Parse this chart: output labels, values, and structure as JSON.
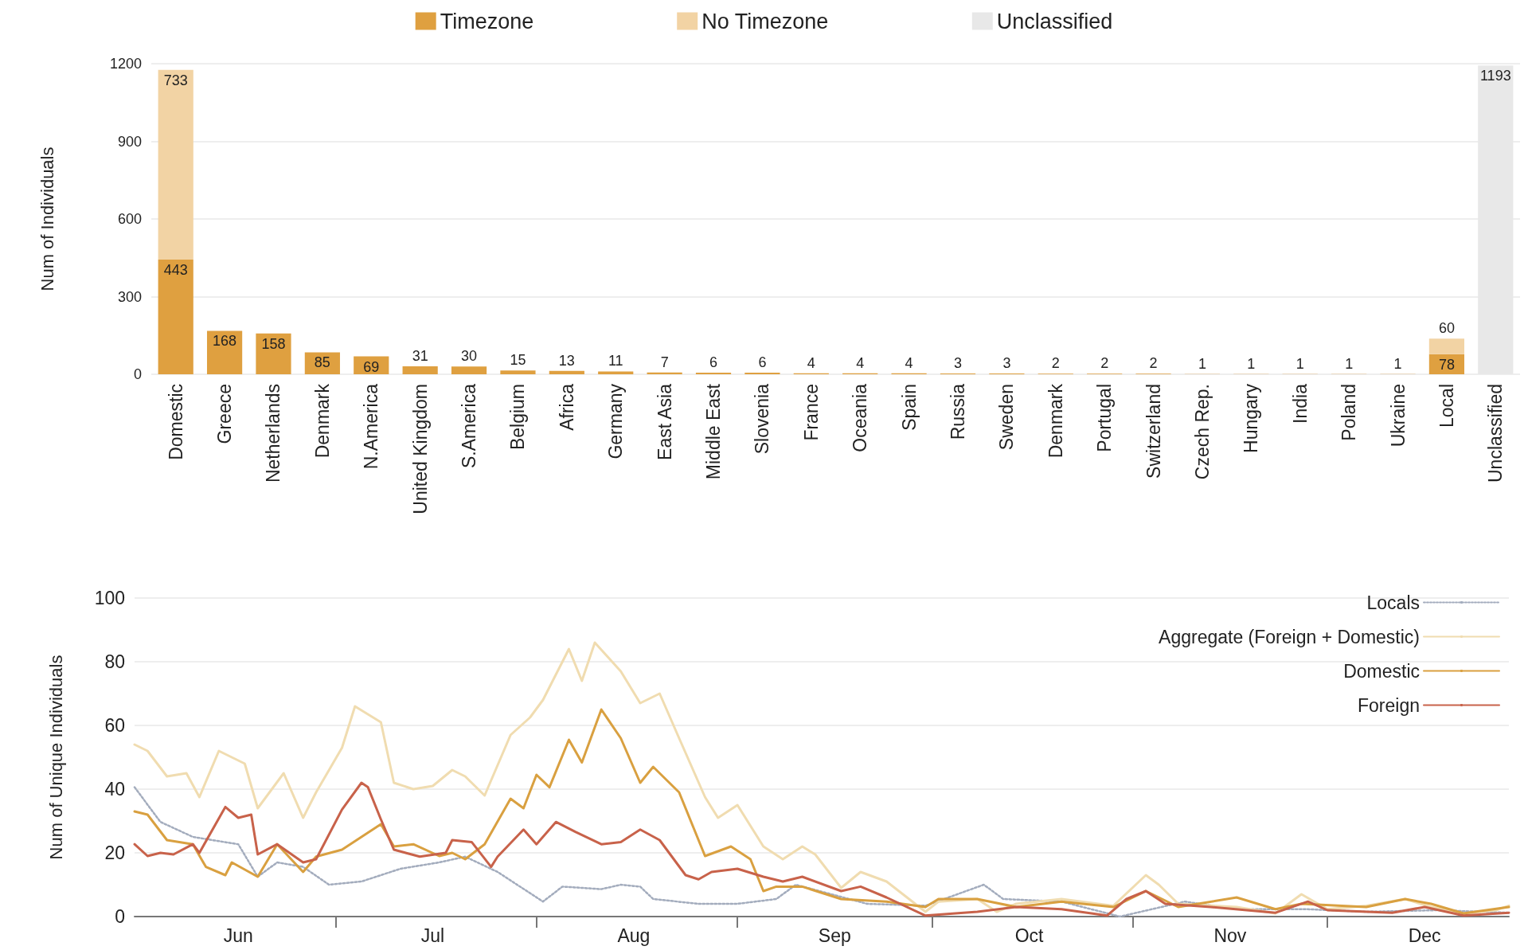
{
  "chart_data": [
    {
      "type": "bar",
      "stacked": true,
      "ylabel": "Num of Individuals",
      "legend": "top",
      "grid": "y",
      "data_labels": true,
      "categories": [
        "Domestic",
        "Greece",
        "Netherlands",
        "Denmark",
        "N.America",
        "United Kingdom",
        "S.America",
        "Belgium",
        "Africa",
        "Germany",
        "East Asia",
        "Middle East",
        "Slovenia",
        "France",
        "Oceania",
        "Spain",
        "Russia",
        "Sweden",
        "Denmark",
        "Portugal",
        "Switzerland",
        "Czech Rep.",
        "Hungary",
        "India",
        "Poland",
        "Ukraine",
        "Local",
        "Unclassified"
      ],
      "ylim": [
        0,
        1200
      ],
      "yticks": [
        0,
        300,
        600,
        900,
        1200
      ],
      "series": [
        {
          "name": "Timezone",
          "color": "#dfa040",
          "values": [
            443,
            168,
            158,
            85,
            69,
            31,
            30,
            15,
            13,
            11,
            7,
            6,
            6,
            4,
            4,
            4,
            3,
            3,
            2,
            2,
            2,
            1,
            1,
            1,
            1,
            1,
            78,
            null
          ]
        },
        {
          "name": "No Timezone",
          "color": "#f2d3a4",
          "values": [
            733,
            null,
            null,
            null,
            null,
            null,
            null,
            null,
            null,
            null,
            null,
            null,
            null,
            null,
            null,
            null,
            null,
            null,
            null,
            null,
            null,
            null,
            null,
            null,
            null,
            null,
            60,
            null
          ]
        },
        {
          "name": "Unclassified",
          "color": "#e8e8e8",
          "values": [
            null,
            null,
            null,
            null,
            null,
            null,
            null,
            null,
            null,
            null,
            null,
            null,
            null,
            null,
            null,
            null,
            null,
            null,
            null,
            null,
            null,
            null,
            null,
            null,
            null,
            null,
            null,
            1193
          ]
        }
      ]
    },
    {
      "type": "line",
      "ylabel": "Num of Unique Individuals",
      "legend": "top right",
      "grid": "y",
      "marker": "none",
      "xlim": [
        "--05-31",
        "--12-29"
      ],
      "xticks": [
        {
          "value": "--06-16",
          "label": "Jun"
        },
        {
          "value": "--07-01",
          "label": null
        },
        {
          "value": "--07-16",
          "label": "Jul"
        },
        {
          "value": "--08-01",
          "label": null
        },
        {
          "value": "--08-16",
          "label": "Aug"
        },
        {
          "value": "--09-01",
          "label": null
        },
        {
          "value": "--09-16",
          "label": "Sep"
        },
        {
          "value": "--10-01",
          "label": null
        },
        {
          "value": "--10-16",
          "label": "Oct"
        },
        {
          "value": "--11-01",
          "label": null
        },
        {
          "value": "--11-16",
          "label": "Nov"
        },
        {
          "value": "--12-01",
          "label": null
        },
        {
          "value": "--12-16",
          "label": "Dec"
        }
      ],
      "ylim": [
        0,
        100
      ],
      "yticks": [
        0,
        20,
        40,
        60,
        80,
        100
      ],
      "series": [
        {
          "name": "Locals",
          "color": "#a3acbd",
          "line_style": "dotted",
          "x": [
            "--05-31",
            "--06-04",
            "--06-09",
            "--06-12",
            "--06-16",
            "--06-19",
            "--06-22",
            "--06-26",
            "--06-30",
            "--07-05",
            "--07-11",
            "--07-17",
            "--07-21",
            "--07-26",
            "--08-02",
            "--08-05",
            "--08-11",
            "--08-14",
            "--08-17",
            "--08-19",
            "--08-26",
            "--09-01",
            "--09-07",
            "--09-10",
            "--09-21",
            "--09-30",
            "--10-09",
            "--10-12",
            "--10-21",
            "--10-30",
            "--11-09",
            "--11-17",
            "--11-28",
            "--12-07",
            "--12-18",
            "--12-29"
          ],
          "values": [
            40.6,
            29.7,
            25,
            24,
            22.7,
            12.5,
            17,
            15.6,
            10,
            11,
            15,
            17,
            18.8,
            14,
            4.7,
            9.4,
            8.6,
            10,
            9.4,
            5.5,
            4,
            4,
            5.5,
            10,
            4,
            3.4,
            10,
            5.5,
            4.7,
            0,
            4.7,
            2.3,
            2.3,
            1.5,
            2,
            1.2
          ]
        },
        {
          "name": "Aggregate (Foreign + Domestic)",
          "color": "#f0dcb0",
          "line_style": "solid",
          "x": [
            "--05-31",
            "--06-02",
            "--06-05",
            "--06-08",
            "--06-10",
            "--06-13",
            "--06-17",
            "--06-19",
            "--06-23",
            "--06-26",
            "--06-28",
            "--07-02",
            "--07-04",
            "--07-08",
            "--07-10",
            "--07-13",
            "--07-16",
            "--07-19",
            "--07-21",
            "--07-24",
            "--07-28",
            "--07-31",
            "--08-02",
            "--08-06",
            "--08-08",
            "--08-10",
            "--08-14",
            "--08-17",
            "--08-20",
            "--08-23",
            "--08-27",
            "--08-29",
            "--09-01",
            "--09-05",
            "--09-08",
            "--09-11",
            "--09-13",
            "--09-17",
            "--09-20",
            "--09-24",
            "--09-30",
            "--10-02",
            "--10-08",
            "--10-11",
            "--10-14",
            "--10-21",
            "--10-29",
            "--11-03",
            "--11-05",
            "--11-08",
            "--11-17",
            "--11-23",
            "--11-27",
            "--12-01",
            "--12-07",
            "--12-13",
            "--12-17",
            "--12-22",
            "--12-27",
            "--12-29"
          ],
          "values": [
            54,
            52,
            44,
            45,
            37.5,
            52,
            48,
            34,
            45,
            31,
            39,
            53,
            66,
            61,
            42,
            40,
            41,
            46,
            44,
            38,
            57,
            62.5,
            68,
            84,
            74,
            86,
            77,
            67,
            70,
            56,
            37.5,
            31,
            35,
            22,
            18,
            22,
            19.5,
            9,
            14,
            11,
            1.5,
            4.7,
            5.5,
            1.5,
            4,
            5.5,
            3.4,
            13,
            10,
            4,
            3,
            1,
            7,
            2.3,
            3.4,
            5.5,
            3,
            1,
            2,
            3.4
          ]
        },
        {
          "name": "Domestic",
          "color": "#d9a040",
          "line_style": "solid",
          "x": [
            "--05-31",
            "--06-02",
            "--06-05",
            "--06-09",
            "--06-11",
            "--06-14",
            "--06-15",
            "--06-19",
            "--06-22",
            "--06-26",
            "--06-28",
            "--07-02",
            "--07-05",
            "--07-08",
            "--07-10",
            "--07-13",
            "--07-17",
            "--07-19",
            "--07-21",
            "--07-24",
            "--07-28",
            "--07-30",
            "--08-01",
            "--08-03",
            "--08-06",
            "--08-08",
            "--08-11",
            "--08-14",
            "--08-17",
            "--08-19",
            "--08-23",
            "--08-27",
            "--08-31",
            "--09-03",
            "--09-05",
            "--09-07",
            "--09-11",
            "--09-17",
            "--09-24",
            "--09-30",
            "--10-02",
            "--10-08",
            "--10-14",
            "--10-21",
            "--10-29",
            "--11-03",
            "--11-08",
            "--11-17",
            "--11-23",
            "--11-27",
            "--12-07",
            "--12-13",
            "--12-17",
            "--12-22",
            "--12-29"
          ],
          "values": [
            33,
            32,
            24,
            22.7,
            15.6,
            13,
            17,
            12.5,
            22.7,
            14,
            18.8,
            21,
            25,
            29,
            22,
            22.7,
            19,
            20,
            18,
            22.7,
            37,
            34,
            44.5,
            40.6,
            55.5,
            48.4,
            65,
            56,
            42,
            47,
            39,
            19,
            22,
            18,
            8,
            9.4,
            9.4,
            5.5,
            4.7,
            3,
            5.5,
            5.5,
            3,
            4.7,
            3,
            8,
            3,
            6,
            2.3,
            4,
            3,
            5.5,
            4,
            1,
            3
          ]
        },
        {
          "name": "Foreign",
          "color": "#c8624a",
          "line_style": "solid",
          "x": [
            "--05-31",
            "--06-02",
            "--06-04",
            "--06-06",
            "--06-09",
            "--06-10",
            "--06-14",
            "--06-16",
            "--06-18",
            "--06-19",
            "--06-22",
            "--06-26",
            "--06-28",
            "--07-02",
            "--07-05",
            "--07-06",
            "--07-08",
            "--07-10",
            "--07-14",
            "--07-18",
            "--07-19",
            "--07-22",
            "--07-25",
            "--07-26",
            "--07-30",
            "--08-01",
            "--08-04",
            "--08-07",
            "--08-11",
            "--08-14",
            "--08-17",
            "--08-20",
            "--08-24",
            "--08-26",
            "--08-28",
            "--09-01",
            "--09-05",
            "--09-08",
            "--09-11",
            "--09-17",
            "--09-20",
            "--09-24",
            "--09-30",
            "--10-08",
            "--10-14",
            "--10-21",
            "--10-28",
            "--10-31",
            "--11-03",
            "--11-06",
            "--11-13",
            "--11-23",
            "--11-28",
            "--12-01",
            "--12-11",
            "--12-16",
            "--12-22",
            "--12-29"
          ],
          "values": [
            22.7,
            19,
            20,
            19.5,
            22.7,
            20,
            34.4,
            31,
            32,
            19.5,
            22.7,
            17,
            18,
            33.6,
            42,
            40.6,
            30.5,
            21,
            18.8,
            20,
            24,
            23.4,
            15.6,
            18.8,
            27.3,
            22.7,
            29.7,
            26.6,
            22.7,
            23.4,
            27.3,
            24,
            13,
            11.7,
            14,
            15,
            12.5,
            11,
            12.5,
            8,
            9.4,
            6,
            0.3,
            1.5,
            3,
            2.3,
            0.3,
            5.5,
            8,
            4,
            3,
            1.2,
            4.7,
            2,
            1.2,
            3,
            0.3,
            1.2
          ]
        }
      ]
    }
  ]
}
